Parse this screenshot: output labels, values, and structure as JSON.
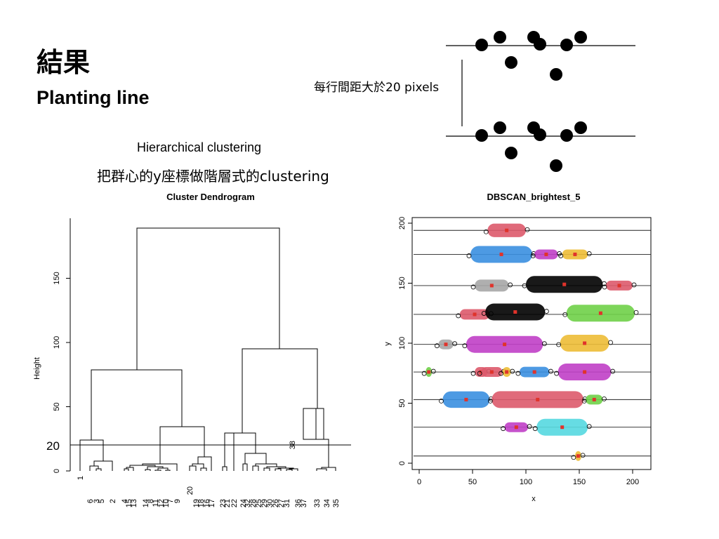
{
  "slide": {
    "title": "結果",
    "subtitle": "Planting line",
    "hc_title": "Hierarchical clustering",
    "hc_desc": "把群心的y座標做階層式的clustering",
    "spacing_note": "每行間距大於20 pixels"
  },
  "chart_data": [
    {
      "type": "dendrogram",
      "title": "Cluster Dendrogram",
      "ylabel": "Height",
      "ylim": [
        0,
        195
      ],
      "yticks": [
        "0",
        "50",
        "100",
        "150"
      ],
      "cut_label": "20",
      "cut_height": 20,
      "leaves": [
        "1",
        "6",
        "3",
        "5",
        "2",
        "4",
        "15",
        "13",
        "14",
        "8",
        "11",
        "12",
        "10",
        "7",
        "9",
        "20",
        "19",
        "18",
        "16",
        "17",
        "23",
        "21",
        "22",
        "24",
        "32",
        "28",
        "25",
        "29",
        "30",
        "26",
        "27",
        "31",
        "38",
        "36",
        "37",
        "33",
        "34",
        "35"
      ]
    },
    {
      "type": "scatter",
      "title": "DBSCAN_brightest_5",
      "xlabel": "x",
      "ylabel": "y",
      "xlim": [
        0,
        210
      ],
      "ylim": [
        -5,
        205
      ],
      "xticks": [
        "0",
        "50",
        "100",
        "150",
        "200"
      ],
      "yticks": [
        "0",
        "50",
        "100",
        "150",
        "200"
      ],
      "planting_lines_y": [
        6,
        30,
        53,
        76,
        99,
        124,
        148,
        174,
        194
      ],
      "colors": {
        "red": "#dd5a6b",
        "blue": "#3a8fe0",
        "magenta": "#c03fc7",
        "yellow": "#edbc36",
        "gray": "#a6a6a6",
        "black": "#000000",
        "green": "#6fd048",
        "cyan": "#55d8e0"
      },
      "clusters": [
        {
          "color": "red",
          "x": [
            64,
            100
          ],
          "y": 194
        },
        {
          "color": "blue",
          "x": [
            48,
            106
          ],
          "y": 174
        },
        {
          "color": "magenta",
          "x": [
            108,
            130
          ],
          "y": 174
        },
        {
          "color": "yellow",
          "x": [
            134,
            158
          ],
          "y": 174
        },
        {
          "color": "gray",
          "x": [
            52,
            84
          ],
          "y": 148
        },
        {
          "color": "black",
          "x": [
            100,
            172
          ],
          "y": 149
        },
        {
          "color": "red",
          "x": [
            175,
            200
          ],
          "y": 148
        },
        {
          "color": "red",
          "x": [
            38,
            66
          ],
          "y": 124
        },
        {
          "color": "black",
          "x": [
            62,
            118
          ],
          "y": 126
        },
        {
          "color": "green",
          "x": [
            138,
            202
          ],
          "y": 125
        },
        {
          "color": "gray",
          "x": [
            18,
            32
          ],
          "y": 99
        },
        {
          "color": "magenta",
          "x": [
            44,
            116
          ],
          "y": 99
        },
        {
          "color": "yellow",
          "x": [
            132,
            178
          ],
          "y": 100
        },
        {
          "color": "green",
          "x": [
            6,
            12
          ],
          "y": 76
        },
        {
          "color": "red",
          "x": [
            52,
            64
          ],
          "y": 76
        },
        {
          "color": "red",
          "x": [
            58,
            78
          ],
          "y": 76
        },
        {
          "color": "yellow",
          "x": [
            78,
            86
          ],
          "y": 76
        },
        {
          "color": "blue",
          "x": [
            94,
            122
          ],
          "y": 76
        },
        {
          "color": "magenta",
          "x": [
            130,
            180
          ],
          "y": 76
        },
        {
          "color": "blue",
          "x": [
            22,
            66
          ],
          "y": 53
        },
        {
          "color": "red",
          "x": [
            68,
            154
          ],
          "y": 53
        },
        {
          "color": "green",
          "x": [
            156,
            172
          ],
          "y": 53
        },
        {
          "color": "magenta",
          "x": [
            80,
            102
          ],
          "y": 30
        },
        {
          "color": "cyan",
          "x": [
            110,
            158
          ],
          "y": 30
        },
        {
          "color": "yellow",
          "x": [
            146,
            152
          ],
          "y": 6
        }
      ]
    },
    {
      "type": "diagram",
      "top_row_dots": [
        [
          686,
          64
        ],
        [
          712,
          53
        ],
        [
          760,
          53
        ],
        [
          769,
          63
        ],
        [
          807,
          64
        ],
        [
          827,
          53
        ],
        [
          728,
          89
        ],
        [
          792,
          106
        ]
      ],
      "bottom_row_dots": [
        [
          686,
          193
        ],
        [
          712,
          182
        ],
        [
          760,
          182
        ],
        [
          769,
          192
        ],
        [
          807,
          193
        ],
        [
          827,
          182
        ],
        [
          728,
          218
        ],
        [
          792,
          236
        ]
      ]
    }
  ]
}
